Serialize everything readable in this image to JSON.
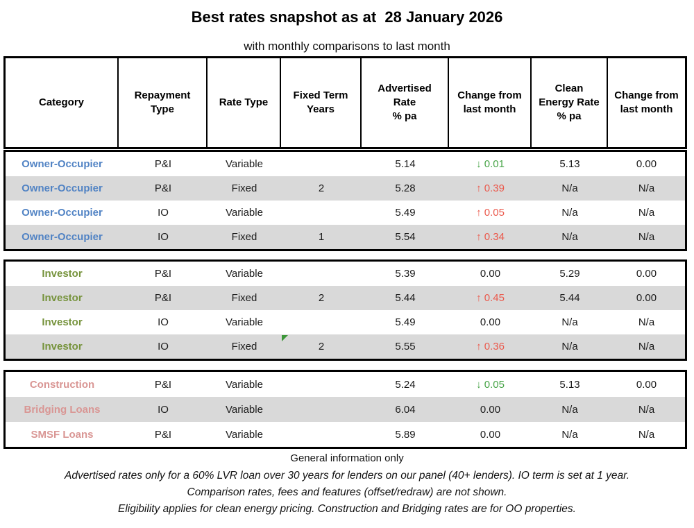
{
  "title": "Best rates snapshot as at  28 January 2026",
  "subtitle": "with monthly comparisons to last month",
  "colors": {
    "increase": "#EB5A4D",
    "decrease": "#47A447",
    "row_stripe": "#D9D9D9",
    "note_marker": "#3C9639",
    "category_owner_occupier": "#5183C4",
    "category_investor": "#76933C",
    "category_specialty": "#D99694"
  },
  "table": {
    "headers": [
      "Category",
      "Repayment\nType",
      "Rate Type",
      "Fixed Term\nYears",
      "Advertised\nRate\n% pa",
      "Change from\nlast month",
      "Clean\nEnergy Rate\n% pa",
      "Change from\nlast month"
    ],
    "blocks": [
      {
        "name": "owner-occupier",
        "category_color": "#5183C4",
        "rows": [
          {
            "category": "Owner-Occupier",
            "repayment": "P&I",
            "rate_type": "Variable",
            "term": "",
            "advertised": "5.14",
            "change_dir": "down",
            "change": "0.01",
            "clean_rate": "5.13",
            "clean_change": "0.00"
          },
          {
            "category": "Owner-Occupier",
            "repayment": "P&I",
            "rate_type": "Fixed",
            "term": "2",
            "advertised": "5.28",
            "change_dir": "up",
            "change": "0.39",
            "clean_rate": "N/a",
            "clean_change": "N/a"
          },
          {
            "category": "Owner-Occupier",
            "repayment": "IO",
            "rate_type": "Variable",
            "term": "",
            "advertised": "5.49",
            "change_dir": "up",
            "change": "0.05",
            "clean_rate": "N/a",
            "clean_change": "N/a"
          },
          {
            "category": "Owner-Occupier",
            "repayment": "IO",
            "rate_type": "Fixed",
            "term": "1",
            "advertised": "5.54",
            "change_dir": "up",
            "change": "0.34",
            "clean_rate": "N/a",
            "clean_change": "N/a"
          }
        ]
      },
      {
        "name": "investor",
        "category_color": "#76933C",
        "rows": [
          {
            "category": "Investor",
            "repayment": "P&I",
            "rate_type": "Variable",
            "term": "",
            "advertised": "5.39",
            "change_dir": "none",
            "change": "0.00",
            "clean_rate": "5.29",
            "clean_change": "0.00"
          },
          {
            "category": "Investor",
            "repayment": "P&I",
            "rate_type": "Fixed",
            "term": "2",
            "advertised": "5.44",
            "change_dir": "up",
            "change": "0.45",
            "clean_rate": "5.44",
            "clean_change": "0.00"
          },
          {
            "category": "Investor",
            "repayment": "IO",
            "rate_type": "Variable",
            "term": "",
            "advertised": "5.49",
            "change_dir": "none",
            "change": "0.00",
            "clean_rate": "N/a",
            "clean_change": "N/a"
          },
          {
            "category": "Investor",
            "repayment": "IO",
            "rate_type": "Fixed",
            "term": "2",
            "advertised": "5.55",
            "change_dir": "up",
            "change": "0.36",
            "clean_rate": "N/a",
            "clean_change": "N/a",
            "note_marker": true
          }
        ]
      },
      {
        "name": "specialty",
        "category_color": "#D99694",
        "rows": [
          {
            "category": "Construction",
            "repayment": "P&I",
            "rate_type": "Variable",
            "term": "",
            "advertised": "5.24",
            "change_dir": "down",
            "change": "0.05",
            "clean_rate": "5.13",
            "clean_change": "0.00"
          },
          {
            "category": "Bridging Loans",
            "repayment": "IO",
            "rate_type": "Variable",
            "term": "",
            "advertised": "6.04",
            "change_dir": "none",
            "change": "0.00",
            "clean_rate": "N/a",
            "clean_change": "N/a"
          },
          {
            "category": "SMSF Loans",
            "repayment": "P&I",
            "rate_type": "Variable",
            "term": "",
            "advertised": "5.89",
            "change_dir": "none",
            "change": "0.00",
            "clean_rate": "N/a",
            "clean_change": "N/a"
          }
        ]
      }
    ]
  },
  "footnotes": [
    "General information only",
    "Advertised rates only for a 60% LVR loan over 30 years for lenders on our panel (40+ lenders).  IO term is set at 1 year.",
    "Comparison rates, fees and features (offset/redraw) are not shown.",
    "Eligibility applies for clean energy pricing. Construction and Bridging rates are for OO properties."
  ]
}
